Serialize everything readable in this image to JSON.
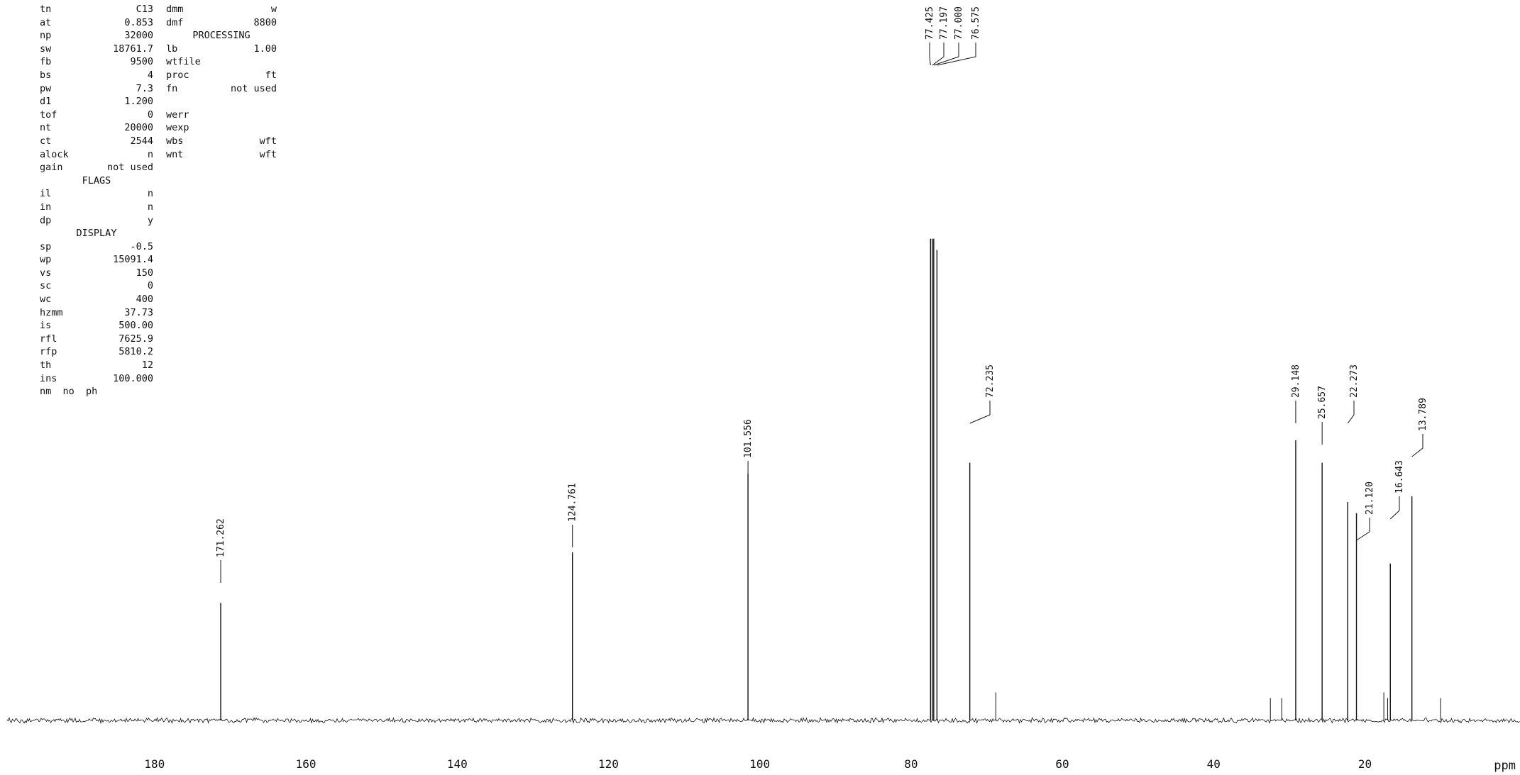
{
  "parameters": {
    "col1": [
      {
        "key": "tn",
        "value": "C13"
      },
      {
        "key": "at",
        "value": "0.853"
      },
      {
        "key": "np",
        "value": "32000"
      },
      {
        "key": "sw",
        "value": "18761.7"
      },
      {
        "key": "fb",
        "value": "9500"
      },
      {
        "key": "bs",
        "value": "4"
      },
      {
        "key": "pw",
        "value": "7.3"
      },
      {
        "key": "d1",
        "value": "1.200"
      },
      {
        "key": "tof",
        "value": "0"
      },
      {
        "key": "nt",
        "value": "20000"
      },
      {
        "key": "ct",
        "value": "2544"
      },
      {
        "key": "alock",
        "value": "n"
      },
      {
        "key": "gain",
        "value": "not used"
      },
      {
        "section": "FLAGS"
      },
      {
        "key": "il",
        "value": "n"
      },
      {
        "key": "in",
        "value": "n"
      },
      {
        "key": "dp",
        "value": "y"
      },
      {
        "section": "DISPLAY"
      },
      {
        "key": "sp",
        "value": "-0.5"
      },
      {
        "key": "wp",
        "value": "15091.4"
      },
      {
        "key": "vs",
        "value": "150"
      },
      {
        "key": "sc",
        "value": "0"
      },
      {
        "key": "wc",
        "value": "400"
      },
      {
        "key": "hzmm",
        "value": "37.73"
      },
      {
        "key": "is",
        "value": "500.00"
      },
      {
        "key": "rfl",
        "value": "7625.9"
      },
      {
        "key": "rfp",
        "value": "5810.2"
      },
      {
        "key": "th",
        "value": "12"
      },
      {
        "key": "ins",
        "value": "100.000"
      },
      {
        "key": "nm  no  ph",
        "value": ""
      }
    ],
    "col2": [
      {
        "key": "dmm",
        "value": "w"
      },
      {
        "key": "dmf",
        "value": "8800"
      },
      {
        "section": "PROCESSING"
      },
      {
        "key": "lb",
        "value": "1.00"
      },
      {
        "key": "wtfile",
        "value": ""
      },
      {
        "key": "proc",
        "value": "ft"
      },
      {
        "key": "fn",
        "value": "not used"
      },
      {
        "key": "",
        "value": ""
      },
      {
        "key": "werr",
        "value": ""
      },
      {
        "key": "wexp",
        "value": ""
      },
      {
        "key": "wbs",
        "value": "wft"
      },
      {
        "key": "wnt",
        "value": "wft"
      }
    ]
  },
  "chart_data": {
    "type": "line",
    "title": "",
    "xlabel": "ppm",
    "ylabel": "",
    "xlim": [
      199.5,
      -0.5
    ],
    "x_reversed": true,
    "grid": false,
    "x_ticks": [
      180,
      160,
      140,
      120,
      100,
      80,
      60,
      40,
      20
    ],
    "x_tick_labels": [
      "180",
      "160",
      "140",
      "120",
      "100",
      "80",
      "60",
      "40",
      "20"
    ],
    "peaks": [
      {
        "ppm": 171.262,
        "label": "171.262",
        "intensity": 0.21
      },
      {
        "ppm": 124.761,
        "label": "124.761",
        "intensity": 0.3
      },
      {
        "ppm": 101.556,
        "label": "101.556",
        "intensity": 0.44
      },
      {
        "ppm": 77.425,
        "label": "77.425",
        "intensity": 0.86
      },
      {
        "ppm": 77.197,
        "label": "77.197",
        "intensity": 0.86
      },
      {
        "ppm": 77.0,
        "label": "77.000",
        "intensity": 0.86
      },
      {
        "ppm": 76.575,
        "label": "76.575",
        "intensity": 0.84
      },
      {
        "ppm": 72.235,
        "label": "72.235",
        "intensity": 0.46
      },
      {
        "ppm": 29.148,
        "label": "29.148",
        "intensity": 0.5
      },
      {
        "ppm": 25.657,
        "label": "25.657",
        "intensity": 0.46
      },
      {
        "ppm": 22.273,
        "label": "22.273",
        "intensity": 0.39
      },
      {
        "ppm": 21.12,
        "label": "21.120",
        "intensity": 0.37
      },
      {
        "ppm": 16.643,
        "label": "16.643",
        "intensity": 0.28
      },
      {
        "ppm": 13.789,
        "label": "13.789",
        "intensity": 0.4
      }
    ],
    "minor_peaks": [
      {
        "ppm": 68.8,
        "intensity": 0.05
      },
      {
        "ppm": 32.5,
        "intensity": 0.04
      },
      {
        "ppm": 31.0,
        "intensity": 0.04
      },
      {
        "ppm": 17.5,
        "intensity": 0.05
      },
      {
        "ppm": 17.0,
        "intensity": 0.04
      },
      {
        "ppm": 10.0,
        "intensity": 0.04
      }
    ]
  }
}
